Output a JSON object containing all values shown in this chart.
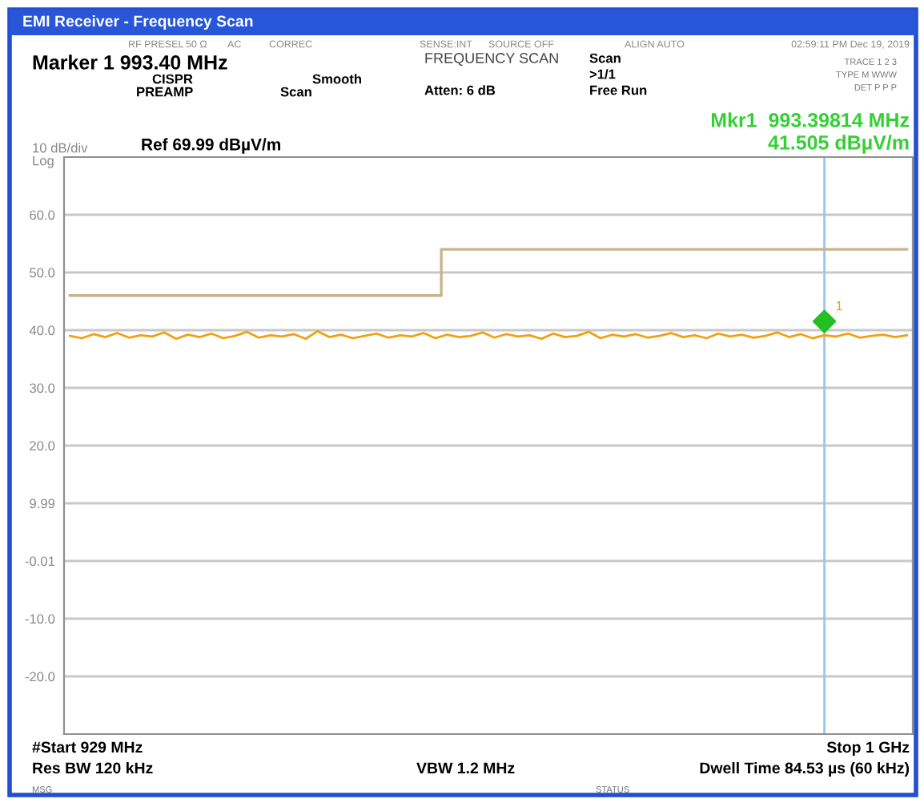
{
  "chart_data": {
    "type": "line",
    "title": "EMI Receiver - Frequency Scan",
    "categories": [
      null,
      null,
      null,
      null,
      null,
      null,
      null,
      null,
      null,
      null,
      null,
      null,
      null,
      null,
      null,
      null,
      null,
      null,
      null,
      null,
      null,
      null,
      null,
      null,
      null,
      null,
      null,
      null,
      null,
      null,
      null,
      null,
      null,
      null,
      null,
      null,
      null,
      null,
      null,
      null,
      null,
      null,
      null,
      null,
      null,
      null,
      null,
      null,
      null,
      null,
      null,
      null,
      null,
      null,
      null,
      null,
      null,
      null,
      null,
      null,
      null,
      null,
      null,
      null,
      null,
      null,
      null,
      null,
      null,
      null,
      null,
      null
    ],
    "ylim": [
      -30.01,
      69.99
    ],
    "yticks": [
      {
        "value": 59.99,
        "label": "60.0"
      },
      {
        "value": 49.99,
        "label": "50.0"
      },
      {
        "value": 39.99,
        "label": "40.0"
      },
      {
        "value": 29.99,
        "label": "30.0"
      },
      {
        "value": 19.99,
        "label": "20.0"
      },
      {
        "value": 9.99,
        "label": "9.99"
      },
      {
        "value": -0.01,
        "label": "-0.01"
      },
      {
        "value": -10.01,
        "label": "-10.0"
      },
      {
        "value": -20.01,
        "label": "-20.0"
      }
    ],
    "tick_labels": "y",
    "grid": "y",
    "legend": false,
    "series": [
      {
        "color": "#f0a010",
        "marker": "none",
        "values": [
          39.0,
          38.6,
          39.3,
          38.8,
          39.5,
          38.7,
          39.1,
          38.9,
          39.6,
          38.5,
          39.2,
          38.8,
          39.4,
          38.6,
          39.0,
          39.7,
          38.7,
          39.1,
          38.9,
          39.3,
          38.5,
          39.8,
          38.8,
          39.2,
          38.6,
          39.0,
          39.4,
          38.7,
          39.1,
          38.9,
          39.5,
          38.6,
          39.2,
          38.8,
          39.0,
          39.6,
          38.7,
          39.3,
          38.9,
          39.1,
          38.5,
          39.4,
          38.8,
          39.0,
          39.7,
          38.6,
          39.2,
          38.9,
          39.3,
          38.7,
          39.0,
          39.5,
          38.8,
          39.1,
          38.6,
          39.4,
          38.9,
          39.2,
          38.7,
          39.0,
          39.6,
          38.8,
          39.3,
          38.6,
          39.1,
          38.9,
          39.4,
          38.7,
          39.0,
          39.2,
          38.8,
          39.1
        ]
      },
      {
        "type": "step",
        "color": "#c8b48c",
        "marker": "none",
        "values": [
          46,
          46,
          46,
          46,
          46,
          46,
          46,
          46,
          46,
          46,
          46,
          46,
          46,
          46,
          46,
          46,
          46,
          46,
          46,
          46,
          46,
          46,
          46,
          46,
          46,
          46,
          46,
          46,
          46,
          46,
          46,
          46,
          54,
          54,
          54,
          54,
          54,
          54,
          54,
          54,
          54,
          54,
          54,
          54,
          54,
          54,
          54,
          54,
          54,
          54,
          54,
          54,
          54,
          54,
          54,
          54,
          54,
          54,
          54,
          54,
          54,
          54,
          54,
          54,
          54,
          54,
          54,
          54,
          54,
          54,
          54,
          54
        ]
      },
      {
        "type": "scatter",
        "color": "#22c022",
        "marker": "diamond",
        "values": [
          null,
          null,
          null,
          null,
          null,
          null,
          null,
          null,
          null,
          null,
          null,
          null,
          null,
          null,
          null,
          null,
          null,
          null,
          null,
          null,
          null,
          null,
          null,
          null,
          null,
          null,
          null,
          null,
          null,
          null,
          null,
          null,
          null,
          null,
          null,
          null,
          null,
          null,
          null,
          null,
          null,
          null,
          null,
          null,
          null,
          null,
          null,
          null,
          null,
          null,
          null,
          null,
          null,
          null,
          null,
          null,
          null,
          null,
          null,
          null,
          null,
          null,
          null,
          null,
          41.505,
          null,
          null,
          null,
          null,
          null,
          null,
          null
        ]
      }
    ],
    "ref_lines": [
      {
        "axis": "x",
        "color": "#9cc4ec"
      }
    ],
    "annotations": [
      "RF PRESEL",
      "50 Ω",
      "AC",
      "CORREC",
      "SENSE:INT",
      "SOURCE OFF",
      "ALIGN AUTO",
      "02:59:11 PM Dec 19, 2019",
      "Marker 1 993.40 MHz",
      "CISPR",
      "PREAMP",
      "Smooth",
      "Scan",
      "FREQUENCY SCAN",
      "Atten: 6 dB",
      "Scan",
      ">1/1",
      "Free Run",
      "TRACE 1 2 3",
      "TYPE M WWW",
      "DET P P P",
      "Mkr1  993.39814 MHz",
      "41.505 dBµV/m",
      "10 dB/div",
      "Log",
      "Ref 69.99 dBµV/m",
      "#Start 929 MHz",
      "Stop 1 GHz",
      "Res BW 120 kHz",
      "VBW 1.2 MHz",
      "Dwell Time 84.53 µs (60 kHz)",
      "MSG",
      "STATUS",
      {
        "text": "1",
        "y": 41.505
      }
    ]
  }
}
